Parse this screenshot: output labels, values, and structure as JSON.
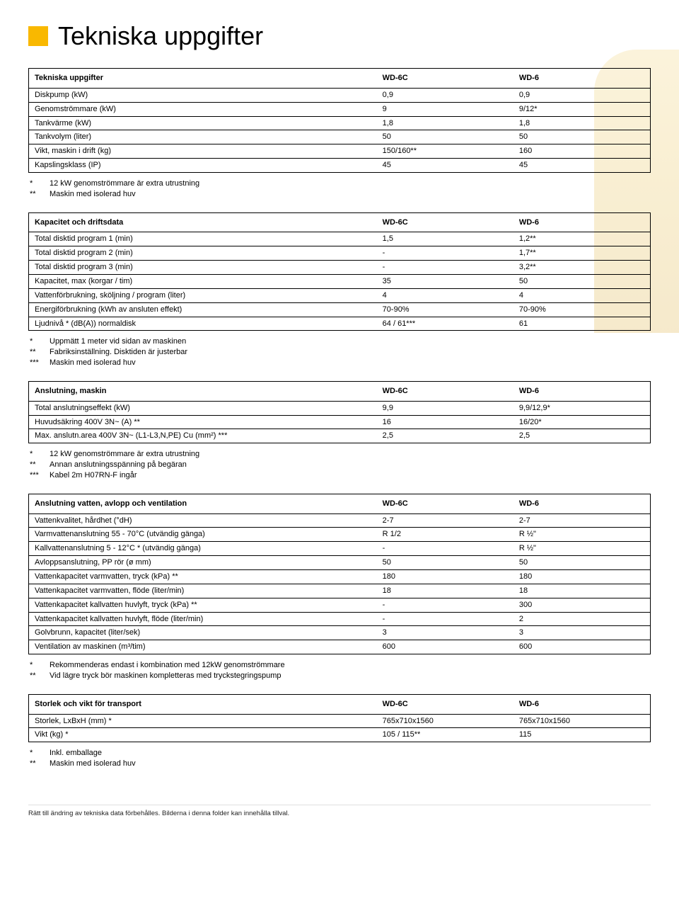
{
  "accent_color": "#f9b800",
  "page_title": "Tekniska uppgifter",
  "bottom_note": "Rätt till ändring av tekniska data förbehålles. Bilderna i denna folder kan innehålla tillval.",
  "sections": [
    {
      "heading": "Tekniska uppgifter",
      "col1": "WD-6C",
      "col2": "WD-6",
      "rows": [
        {
          "label": "Diskpump (kW)",
          "v1": "0,9",
          "v2": "0,9"
        },
        {
          "label": "Genomströmmare (kW)",
          "v1": "9",
          "v2": "9/12*"
        },
        {
          "label": "Tankvärme (kW)",
          "v1": "1,8",
          "v2": "1,8"
        },
        {
          "label": "Tankvolym (liter)",
          "v1": "50",
          "v2": "50"
        },
        {
          "label": "Vikt, maskin i drift (kg)",
          "v1": "150/160**",
          "v2": "160"
        },
        {
          "label": "Kapslingsklass (IP)",
          "v1": "45",
          "v2": "45"
        }
      ],
      "footnotes": [
        {
          "key": "*",
          "text": "12 kW genomströmmare är extra utrustning"
        },
        {
          "key": "**",
          "text": "Maskin med isolerad huv"
        }
      ]
    },
    {
      "heading": "Kapacitet och driftsdata",
      "col1": "WD-6C",
      "col2": "WD-6",
      "rows": [
        {
          "label": "Total disktid program 1 (min)",
          "v1": "1,5",
          "v2": "1,2**"
        },
        {
          "label": "Total disktid program 2 (min)",
          "v1": "-",
          "v2": "1,7**"
        },
        {
          "label": "Total disktid program 3 (min)",
          "v1": "-",
          "v2": "3,2**"
        },
        {
          "label": "Kapacitet, max (korgar / tim)",
          "v1": "35",
          "v2": "50"
        },
        {
          "label": "Vattenförbrukning, sköljning / program (liter)",
          "v1": "4",
          "v2": "4"
        },
        {
          "label": "Energiförbrukning (kWh av ansluten effekt)",
          "v1": "70-90%",
          "v2": "70-90%"
        },
        {
          "label": "Ljudnivå * (dB(A)) normaldisk",
          "v1": "64 / 61***",
          "v2": "61"
        }
      ],
      "footnotes": [
        {
          "key": "*",
          "text": "Uppmätt 1 meter vid sidan av maskinen"
        },
        {
          "key": "**",
          "text": "Fabriksinställning. Disktiden är justerbar"
        },
        {
          "key": "***",
          "text": "Maskin med isolerad huv"
        }
      ]
    },
    {
      "heading": "Anslutning, maskin",
      "col1": "WD-6C",
      "col2": "WD-6",
      "rows": [
        {
          "label": "Total anslutningseffekt (kW)",
          "v1": "9,9",
          "v2": "9,9/12,9*"
        },
        {
          "label": "Huvudsäkring 400V 3N~ (A) **",
          "v1": "16",
          "v2": "16/20*"
        },
        {
          "label": "Max. anslutn.area 400V 3N~ (L1-L3,N,PE) Cu (mm²) ***",
          "v1": "2,5",
          "v2": "2,5"
        }
      ],
      "footnotes": [
        {
          "key": "*",
          "text": "12 kW genomströmmare är extra utrustning"
        },
        {
          "key": "**",
          "text": "Annan anslutningsspänning på begäran"
        },
        {
          "key": "***",
          "text": "Kabel 2m H07RN-F ingår"
        }
      ]
    },
    {
      "heading": "Anslutning vatten, avlopp och ventilation",
      "col1": "WD-6C",
      "col2": "WD-6",
      "rows": [
        {
          "label": "Vattenkvalitet, hårdhet (°dH)",
          "v1": "2-7",
          "v2": "2-7"
        },
        {
          "label": "Varmvattenanslutning 55 - 70°C (utvändig gänga)",
          "v1": "R 1/2",
          "v2": "R ½\""
        },
        {
          "label": "Kallvattenanslutning 5 - 12°C * (utvändig gänga)",
          "v1": "-",
          "v2": "R ½\""
        },
        {
          "label": "Avloppsanslutning, PP rör (ø mm)",
          "v1": "50",
          "v2": "50"
        },
        {
          "label": "Vattenkapacitet varmvatten, tryck (kPa) **",
          "v1": "180",
          "v2": "180"
        },
        {
          "label": "Vattenkapacitet varmvatten, flöde (liter/min)",
          "v1": "18",
          "v2": "18"
        },
        {
          "label": "Vattenkapacitet kallvatten huvlyft, tryck (kPa) **",
          "v1": "-",
          "v2": "300"
        },
        {
          "label": "Vattenkapacitet kallvatten huvlyft, flöde (liter/min)",
          "v1": "-",
          "v2": "2"
        },
        {
          "label": "Golvbrunn, kapacitet (liter/sek)",
          "v1": "3",
          "v2": "3"
        },
        {
          "label": "Ventilation av maskinen (m³/tim)",
          "v1": "600",
          "v2": "600"
        }
      ],
      "footnotes": [
        {
          "key": "*",
          "text": "Rekommenderas endast i kombination med 12kW genomströmmare"
        },
        {
          "key": "**",
          "text": "Vid lägre tryck bör maskinen kompletteras med tryckstegringspump"
        }
      ]
    },
    {
      "heading": "Storlek och vikt för transport",
      "col1": "WD-6C",
      "col2": "WD-6",
      "rows": [
        {
          "label": "Storlek, LxBxH (mm) *",
          "v1": "765x710x1560",
          "v2": "765x710x1560"
        },
        {
          "label": "Vikt (kg) *",
          "v1": "105 / 115**",
          "v2": "115"
        }
      ],
      "footnotes": [
        {
          "key": "*",
          "text": "Inkl. emballage"
        },
        {
          "key": "**",
          "text": "Maskin med isolerad huv"
        }
      ]
    }
  ]
}
